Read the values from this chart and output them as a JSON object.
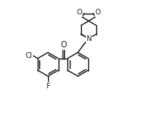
{
  "bg_color": "#ffffff",
  "line_color": "#1a1a1a",
  "lw": 1.0,
  "fs": 6.5,
  "figsize": [
    1.97,
    1.42
  ],
  "dpi": 100,
  "xlim": [
    0.0,
    1.0
  ],
  "ylim": [
    0.0,
    1.0
  ]
}
